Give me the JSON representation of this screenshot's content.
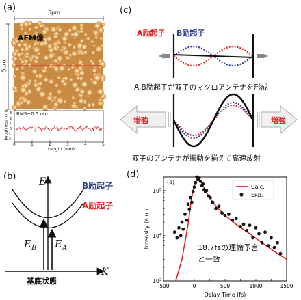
{
  "panels": {
    "a": {
      "letter": "(a)",
      "scale_top": "5μm",
      "scale_left": "5μm",
      "afm_title": "AFM像",
      "rms": "RMS~0.5 nm",
      "ylabel": "Roughness (nm)",
      "xlabel": "Length (mm)",
      "yticks": [
        "-2",
        "-1",
        "0",
        "1",
        "2",
        "3"
      ],
      "xticks": [
        "0",
        "1",
        "2",
        "3",
        "4",
        "5"
      ]
    },
    "b": {
      "letter": "(b)",
      "e_axis": "E",
      "k_axis": "K",
      "b_exciton": "B励起子",
      "a_exciton": "A励起子",
      "eb": "E",
      "eb_sub": "B",
      "ea": "E",
      "ea_sub": "A",
      "ground": "基底状態"
    },
    "c": {
      "letter": "(c)",
      "a_exciton": "A励起子",
      "b_exciton": "B励起子",
      "caption1": "A,B励起子が双子のマクロアンテナを形成",
      "enhance_left": "増強",
      "enhance_right": "増強",
      "caption2": "双子のアンテナが振動を揃えて高速放射"
    },
    "d": {
      "letter": "(d)",
      "inner_letter": "(a)",
      "annotation_line1": "18.7fsの理論予言",
      "annotation_line2": "と一致"
    }
  },
  "colors": {
    "red": "#e02424",
    "blue": "#2c3e91",
    "afm_light": "#f5e3b8",
    "afm_mid": "#d79b4c",
    "afm_dark": "#a0611f",
    "arrow_grey": "#9a9a9a"
  },
  "chart_data": {
    "type": "scatter",
    "xlabel": "Delay Time (fs)",
    "ylabel": "Intensity (a.u.)",
    "xlim": [
      -500,
      1500
    ],
    "ylim": [
      1000,
      200000
    ],
    "yscale": "log",
    "xticks": [
      -500,
      -250,
      0,
      250,
      500,
      750,
      1000,
      1250,
      1500
    ],
    "ytick_labels": [
      "10^3",
      "10^4",
      "10^5"
    ],
    "legend": {
      "placement": "top-right",
      "entries": [
        "Calc.",
        "Exp."
      ]
    },
    "series": [
      {
        "name": "Calc.",
        "kind": "line",
        "x": [
          -300,
          -200,
          -100,
          -50,
          0,
          50,
          80,
          120,
          200,
          300,
          400,
          500,
          700,
          900,
          1100,
          1300,
          1500
        ],
        "y": [
          1000,
          3000,
          18000,
          60000,
          140000,
          175000,
          180000,
          150000,
          90000,
          55000,
          38000,
          28000,
          17000,
          11000,
          7000,
          4500,
          3000
        ]
      },
      {
        "name": "Exp.",
        "kind": "points",
        "x": [
          -320,
          -280,
          -250,
          -220,
          -200,
          -180,
          -150,
          -120,
          -100,
          -80,
          -60,
          -40,
          -20,
          0,
          20,
          40,
          60,
          80,
          100,
          120,
          140,
          160,
          180,
          200,
          230,
          260,
          300,
          350,
          400,
          450,
          500,
          560,
          620,
          680,
          750,
          800,
          850,
          900,
          950,
          1000,
          1050,
          1100,
          1150,
          1200,
          1250,
          1300,
          1350,
          1400
        ],
        "y": [
          12000,
          9000,
          15000,
          10000,
          20000,
          14000,
          30000,
          22000,
          50000,
          38000,
          70000,
          55000,
          95000,
          120000,
          150000,
          200000,
          175000,
          190000,
          160000,
          130000,
          140000,
          105000,
          95000,
          100000,
          75000,
          70000,
          55000,
          40000,
          45000,
          32000,
          28000,
          30000,
          22000,
          24000,
          16000,
          18000,
          13000,
          17000,
          9000,
          15000,
          11000,
          7000,
          12000,
          6000,
          9000,
          5500,
          7000,
          4000
        ]
      }
    ]
  }
}
